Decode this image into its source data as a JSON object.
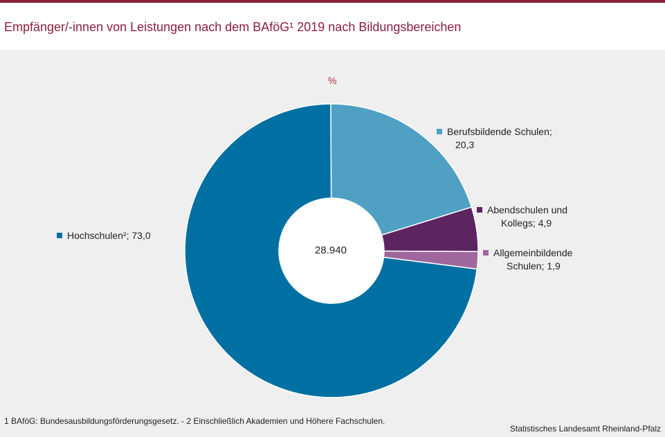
{
  "title": "Empfänger/-innen von Leistungen nach dem BAföG¹ 2019 nach Bildungsbereichen",
  "chart_data": {
    "type": "pie",
    "unit": "%",
    "center_value": "28.940",
    "slices": [
      {
        "name": "Berufsbildende Schulen",
        "value": 20.3,
        "value_label": "20,3",
        "color": "#4fa0c3"
      },
      {
        "name": "Abendschulen und Kollegs",
        "value": 4.9,
        "value_label": "4,9",
        "color": "#5c2461"
      },
      {
        "name": "Allgemeinbildende Schulen",
        "value": 1.9,
        "value_label": "1,9",
        "color": "#a0679e"
      },
      {
        "name": "Hochschulen²",
        "value": 73.0,
        "value_label": "73,0",
        "color": "#0070a3"
      }
    ],
    "legend": {
      "berufsbildende": {
        "line1": "Berufsbildende Schulen;",
        "line2": "20,3"
      },
      "abendschulen": {
        "line1": "Abendschulen und",
        "line2": "Kollegs; 4,9"
      },
      "allgemeinbildende": {
        "line1": "Allgemeinbildende",
        "line2": "Schulen; 1,9"
      },
      "hochschulen": {
        "line1": "Hochschulen²; 73,0"
      }
    }
  },
  "footnote": "1 BAföG: Bundesausbildungsförderungsgesetz. - 2 Einschließlich Akademien und Höhere Fachschulen.",
  "source": "Statistisches Landesamt Rheinland-Pfalz"
}
